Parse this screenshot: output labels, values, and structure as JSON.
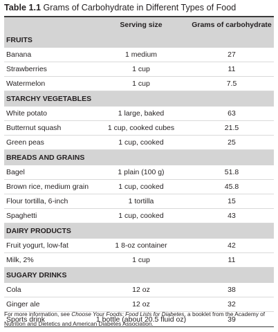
{
  "title": {
    "label": "Table 1.1",
    "text": "Grams of Carbohydrate in Different Types of Food"
  },
  "columns": [
    "",
    "Serving size",
    "Grams of carbohydrate"
  ],
  "sections": [
    {
      "name": "FRUITS",
      "rows": [
        [
          "Banana",
          "1 medium",
          "27"
        ],
        [
          "Strawberries",
          "1 cup",
          "11"
        ],
        [
          "Watermelon",
          "1 cup",
          "7.5"
        ]
      ]
    },
    {
      "name": "STARCHY VEGETABLES",
      "rows": [
        [
          "White potato",
          "1 large, baked",
          "63"
        ],
        [
          "Butternut squash",
          "1 cup, cooked cubes",
          "21.5"
        ],
        [
          "Green peas",
          "1 cup, cooked",
          "25"
        ]
      ]
    },
    {
      "name": "BREADS AND GRAINS",
      "rows": [
        [
          "Bagel",
          "1 plain (100 g)",
          "51.8"
        ],
        [
          "Brown rice, medium grain",
          "1 cup, cooked",
          "45.8"
        ],
        [
          "Flour tortilla, 6-inch",
          "1 tortilla",
          "15"
        ],
        [
          "Spaghetti",
          "1 cup, cooked",
          "43"
        ]
      ]
    },
    {
      "name": "DAIRY PRODUCTS",
      "rows": [
        [
          "Fruit yogurt, low-fat",
          "1 8-oz container",
          "42"
        ],
        [
          "Milk, 2%",
          "1 cup",
          "11"
        ]
      ]
    },
    {
      "name": "SUGARY DRINKS",
      "rows": [
        [
          "Cola",
          "12 oz",
          "38"
        ],
        [
          "Ginger ale",
          "12 oz",
          "32"
        ],
        [
          "Sports drink",
          "1 bottle (about 20.5 fluid oz)",
          "39"
        ]
      ]
    }
  ],
  "footnote": {
    "prefix": "For more information, see ",
    "book": "Choose Your Foods: Food Lists for Diabetes",
    "suffix": ", a booklet from the Academy of Nutrition and Dietetics and American Diabetes Association."
  }
}
